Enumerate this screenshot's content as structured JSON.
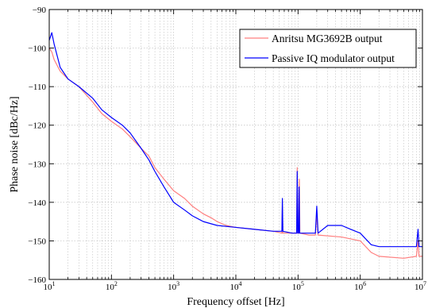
{
  "chart_data": {
    "type": "line",
    "xscale": "log",
    "xlim": [
      10,
      10000000
    ],
    "ylim": [
      -160,
      -90
    ],
    "xlabel": "Frequency offset [Hz]",
    "ylabel": "Phase noise [dBc/Hz]",
    "grid": true,
    "legend_position": "top-right",
    "x_ticks": [
      {
        "base": "10",
        "exp": "1"
      },
      {
        "base": "10",
        "exp": "2"
      },
      {
        "base": "10",
        "exp": "3"
      },
      {
        "base": "10",
        "exp": "4"
      },
      {
        "base": "10",
        "exp": "5"
      },
      {
        "base": "10",
        "exp": "6"
      },
      {
        "base": "10",
        "exp": "7"
      }
    ],
    "y_ticks": [
      "−90",
      "−100",
      "−110",
      "−120",
      "−130",
      "−140",
      "−150",
      "−160"
    ],
    "series": [
      {
        "name": "Anritsu MG3692B output",
        "color": "#ff7f7f",
        "points": [
          [
            10,
            -100
          ],
          [
            11,
            -101
          ],
          [
            12,
            -103
          ],
          [
            15,
            -106
          ],
          [
            20,
            -108
          ],
          [
            30,
            -110
          ],
          [
            50,
            -114
          ],
          [
            70,
            -117
          ],
          [
            100,
            -119
          ],
          [
            150,
            -121
          ],
          [
            200,
            -123
          ],
          [
            300,
            -126
          ],
          [
            400,
            -128
          ],
          [
            500,
            -131
          ],
          [
            700,
            -134
          ],
          [
            1000,
            -137
          ],
          [
            1500,
            -139
          ],
          [
            2000,
            -141
          ],
          [
            3000,
            -143
          ],
          [
            4000,
            -144
          ],
          [
            5000,
            -145
          ],
          [
            7000,
            -146
          ],
          [
            10000,
            -146.5
          ],
          [
            20000,
            -147
          ],
          [
            40000,
            -147.5
          ],
          [
            55000,
            -148
          ],
          [
            56000,
            -141
          ],
          [
            57000,
            -148
          ],
          [
            80000,
            -148
          ],
          [
            95000,
            -148
          ],
          [
            97000,
            -131
          ],
          [
            99000,
            -148
          ],
          [
            103000,
            -148
          ],
          [
            105000,
            -134
          ],
          [
            107000,
            -148
          ],
          [
            150000,
            -148.5
          ],
          [
            190000,
            -148.5
          ],
          [
            200000,
            -143
          ],
          [
            210000,
            -148.5
          ],
          [
            500000,
            -149
          ],
          [
            1000000,
            -150
          ],
          [
            1500000,
            -153
          ],
          [
            2000000,
            -154
          ],
          [
            5000000,
            -154.5
          ],
          [
            8000000,
            -154
          ],
          [
            8500000,
            -150
          ],
          [
            8800000,
            -154
          ],
          [
            10000000,
            -154
          ]
        ]
      },
      {
        "name": "Passive IQ modulator output",
        "color": "#0000ff",
        "points": [
          [
            10,
            -98
          ],
          [
            11,
            -96
          ],
          [
            12,
            -99
          ],
          [
            15,
            -105
          ],
          [
            20,
            -108
          ],
          [
            30,
            -110
          ],
          [
            50,
            -113
          ],
          [
            70,
            -116
          ],
          [
            100,
            -118
          ],
          [
            150,
            -120
          ],
          [
            200,
            -122
          ],
          [
            300,
            -126
          ],
          [
            400,
            -129
          ],
          [
            500,
            -132
          ],
          [
            700,
            -136
          ],
          [
            1000,
            -140
          ],
          [
            1500,
            -142
          ],
          [
            2000,
            -143.5
          ],
          [
            3000,
            -145
          ],
          [
            5000,
            -146
          ],
          [
            10000,
            -146.5
          ],
          [
            20000,
            -147
          ],
          [
            40000,
            -147.5
          ],
          [
            55000,
            -147.5
          ],
          [
            56000,
            -139
          ],
          [
            57000,
            -147.5
          ],
          [
            80000,
            -148
          ],
          [
            95000,
            -148
          ],
          [
            97000,
            -132
          ],
          [
            99000,
            -148
          ],
          [
            102000,
            -148
          ],
          [
            104000,
            -136
          ],
          [
            106000,
            -148
          ],
          [
            150000,
            -148
          ],
          [
            190000,
            -148
          ],
          [
            200000,
            -141
          ],
          [
            210000,
            -148
          ],
          [
            300000,
            -146
          ],
          [
            500000,
            -146
          ],
          [
            700000,
            -147
          ],
          [
            1000000,
            -148
          ],
          [
            1500000,
            -151
          ],
          [
            2000000,
            -151.5
          ],
          [
            5000000,
            -151.5
          ],
          [
            8000000,
            -151.5
          ],
          [
            8500000,
            -147
          ],
          [
            8800000,
            -151.5
          ],
          [
            10000000,
            -151.5
          ]
        ]
      }
    ]
  }
}
